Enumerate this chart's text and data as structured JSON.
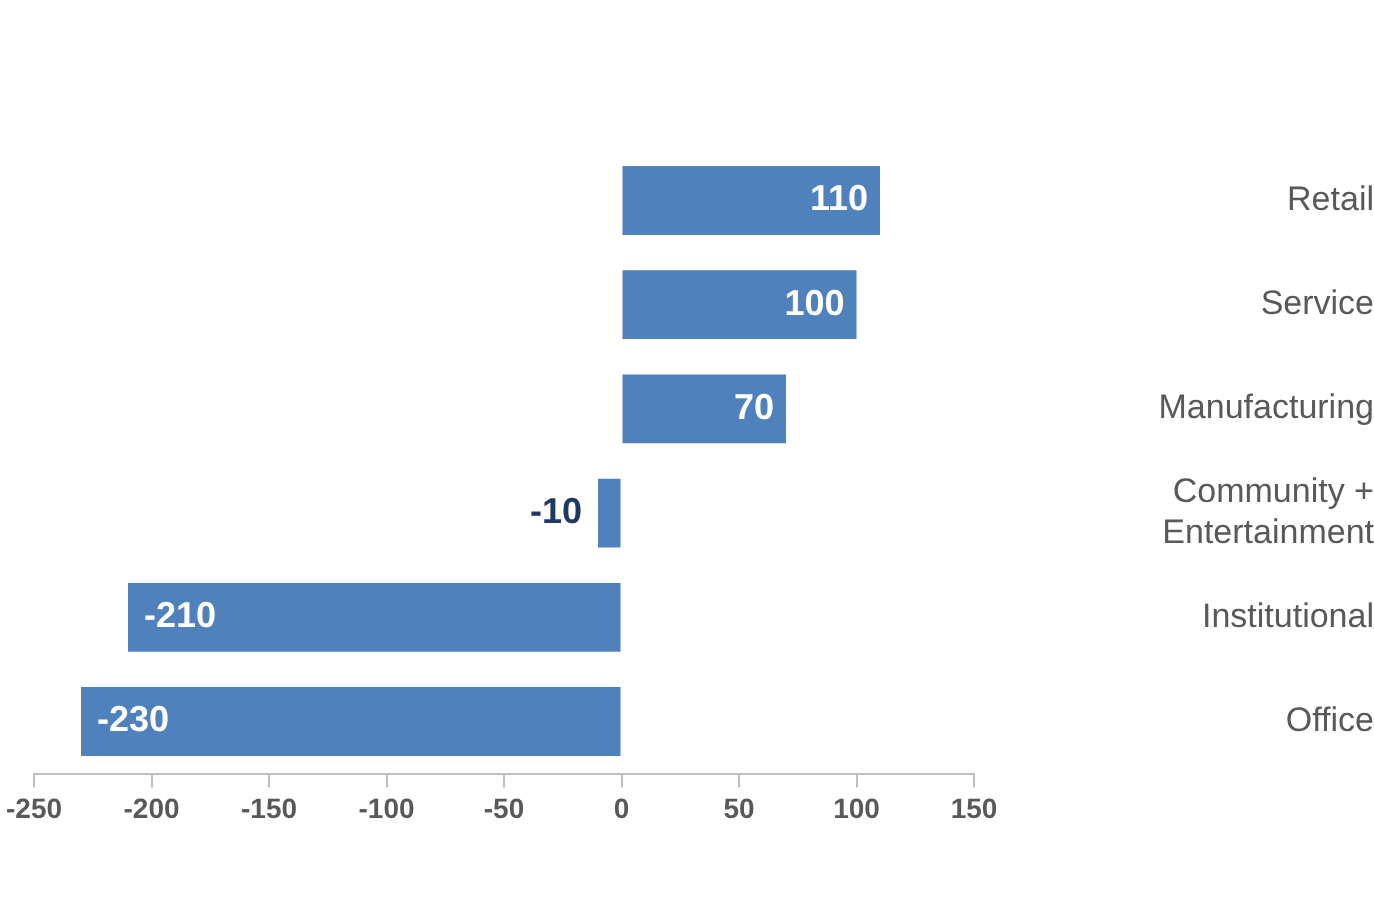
{
  "chart_data": {
    "type": "bar",
    "orientation": "horizontal",
    "categories": [
      "Retail",
      "Service",
      "Manufacturing",
      "Community + Entertainment",
      "Institutional",
      "Office"
    ],
    "values": [
      110,
      100,
      70,
      -10,
      -210,
      -230
    ],
    "color": "#4f81bd",
    "xlim": [
      -250,
      150
    ],
    "xticks": [
      -250,
      -200,
      -150,
      -100,
      -50,
      0,
      50,
      100,
      150
    ],
    "data_labels": true,
    "grid": false,
    "legend": false
  }
}
